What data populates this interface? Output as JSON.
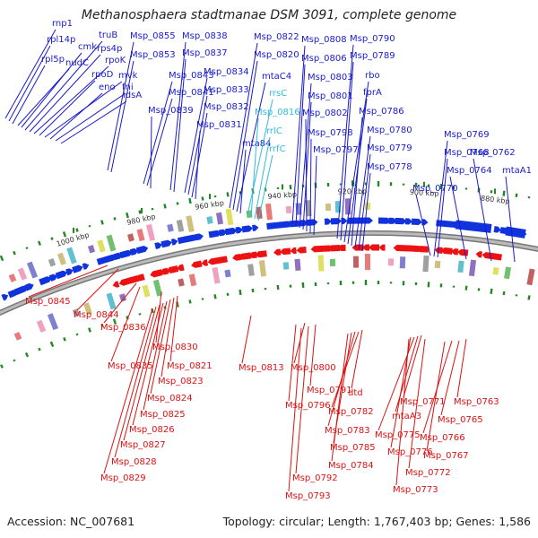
{
  "title": "Methanosphaera stadtmanae DSM 3091, complete genome",
  "footer": {
    "accession": "Accession: NC_007681",
    "summary": "Topology: circular; Length: 1,767,403 bp; Genes: 1,586"
  },
  "colors": {
    "forward_label": "#1a1acc",
    "reverse_label": "#dd1111",
    "rna_label": "#33bbdd",
    "backbone": "#888888",
    "gc_tick": "#228822"
  },
  "ticks": [
    "1000 kbp",
    "980 kbp",
    "960 kbp",
    "940 kbp",
    "920 kbp",
    "900 kbp",
    "880 kbp"
  ],
  "forward_genes": [
    "rnp1",
    "rpl14p",
    "rpl5p",
    "nudC",
    "cmk",
    "truB",
    "rps4p",
    "rpoK",
    "rpoD",
    "mvk",
    "eno",
    "fni",
    "idsA",
    "Msp_0855",
    "Msp_0853",
    "Msp_0838",
    "Msp_0837",
    "Msp_0843",
    "Msp_0841",
    "Msp_0839",
    "Msp_0834",
    "Msp_0833",
    "Msp_0832",
    "Msp_0831",
    "Msp_0822",
    "Msp_0820",
    "mtaC4",
    "mta84",
    "Msp_0808",
    "Msp_0806",
    "Msp_0803",
    "Msp_0801",
    "Msp_0802",
    "Msp_0798",
    "Msp_0797",
    "Msp_0790",
    "Msp_0789",
    "rbo",
    "fprA",
    "Msp_0786",
    "Msp_0780",
    "Msp_0779",
    "Msp_0778",
    "Msp_0769",
    "Msp_0768",
    "Msp_0770",
    "Msp_0764",
    "Msp_0762",
    "mtaA1"
  ],
  "rna_genes": [
    "rrsC",
    "Msp_0816",
    "rrlC",
    "rrfC"
  ],
  "reverse_genes": [
    "Msp_0845",
    "Msp_0844",
    "Msp_0836",
    "Msp_0830",
    "Msp_0835",
    "Msp_0821",
    "Msp_0823",
    "Msp_0824",
    "Msp_0825",
    "Msp_0826",
    "Msp_0827",
    "Msp_0828",
    "Msp_0829",
    "Msp_0813",
    "Msp_0800",
    "Msp_0791",
    "Msp_0796",
    "dtd",
    "Msp_0782",
    "Msp_0783",
    "Msp_0785",
    "Msp_0784",
    "Msp_0792",
    "Msp_0793",
    "Msp_0771",
    "mtaA3",
    "Msp_0775",
    "Msp_0776",
    "Msp_0772",
    "Msp_0773",
    "Msp_0763",
    "Msp_0765",
    "Msp_0766",
    "Msp_0767"
  ]
}
